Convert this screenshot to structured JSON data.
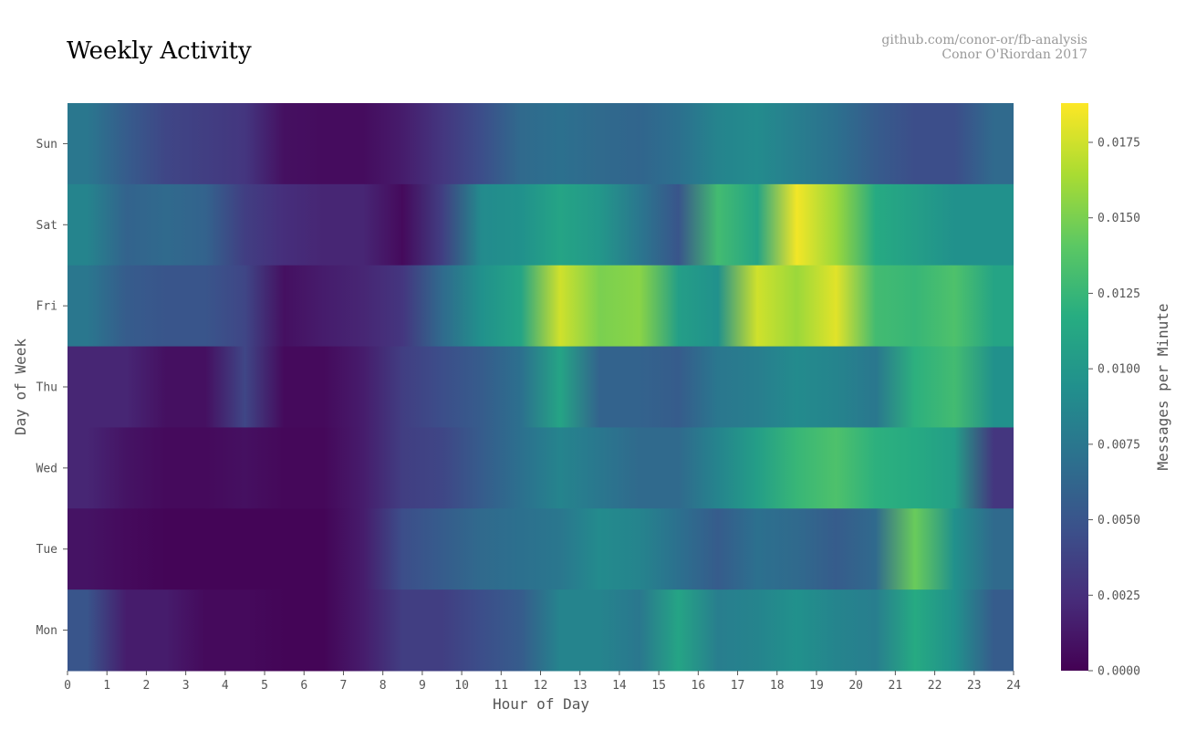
{
  "chart_data": {
    "type": "heatmap",
    "title": "Weekly Activity",
    "credit": {
      "line1": "github.com/conor-or/fb-analysis",
      "line2": "Conor O'Riordan 2017"
    },
    "xlabel": "Hour of Day",
    "ylabel": "Day of Week",
    "colorbar_label": "Messages per Minute",
    "colormap": "viridis",
    "x_ticks": [
      0,
      1,
      2,
      3,
      4,
      5,
      6,
      7,
      8,
      9,
      10,
      11,
      12,
      13,
      14,
      15,
      16,
      17,
      18,
      19,
      20,
      21,
      22,
      23,
      24
    ],
    "x_range": [
      0,
      24
    ],
    "colorbar_ticks": [
      "0.0000",
      "0.0025",
      "0.0050",
      "0.0075",
      "0.0100",
      "0.0125",
      "0.0150",
      "0.0175"
    ],
    "value_range": [
      0,
      0.0188
    ],
    "rows": [
      {
        "day": "Sun",
        "values": [
          0.0075,
          0.0055,
          0.004,
          0.0035,
          0.003,
          0.0008,
          0.0006,
          0.0006,
          0.0015,
          0.003,
          0.0045,
          0.0065,
          0.007,
          0.0065,
          0.0062,
          0.007,
          0.0085,
          0.009,
          0.008,
          0.007,
          0.0055,
          0.0045,
          0.0045,
          0.0065
        ]
      },
      {
        "day": "Sat",
        "values": [
          0.0085,
          0.006,
          0.0065,
          0.006,
          0.0035,
          0.0025,
          0.002,
          0.002,
          0.0005,
          0.0035,
          0.009,
          0.0095,
          0.011,
          0.01,
          0.0075,
          0.005,
          0.013,
          0.011,
          0.0185,
          0.016,
          0.0115,
          0.0105,
          0.0095,
          0.0095
        ]
      },
      {
        "day": "Fri",
        "values": [
          0.0075,
          0.0055,
          0.005,
          0.005,
          0.004,
          0.0008,
          0.0015,
          0.002,
          0.003,
          0.0065,
          0.0095,
          0.011,
          0.0175,
          0.015,
          0.0155,
          0.0105,
          0.0095,
          0.0175,
          0.016,
          0.018,
          0.013,
          0.0125,
          0.0135,
          0.011
        ]
      },
      {
        "day": "Thu",
        "values": [
          0.002,
          0.002,
          0.0008,
          0.0008,
          0.004,
          0.0005,
          0.0005,
          0.0015,
          0.0035,
          0.0045,
          0.0055,
          0.007,
          0.011,
          0.006,
          0.006,
          0.0055,
          0.0075,
          0.008,
          0.009,
          0.0085,
          0.0075,
          0.012,
          0.013,
          0.0095
        ]
      },
      {
        "day": "Wed",
        "values": [
          0.002,
          0.001,
          0.0005,
          0.0005,
          0.0008,
          0.0004,
          0.0004,
          0.0015,
          0.0035,
          0.004,
          0.0055,
          0.007,
          0.0085,
          0.0075,
          0.0065,
          0.0065,
          0.0085,
          0.0105,
          0.0125,
          0.0135,
          0.012,
          0.0115,
          0.0105,
          0.003
        ]
      },
      {
        "day": "Tue",
        "values": [
          0.001,
          0.0005,
          0.0002,
          0.0002,
          0.0002,
          0.0002,
          0.0002,
          0.0015,
          0.0045,
          0.0055,
          0.0065,
          0.007,
          0.0075,
          0.009,
          0.0085,
          0.007,
          0.0055,
          0.007,
          0.0065,
          0.0055,
          0.0065,
          0.0145,
          0.0095,
          0.0065
        ]
      },
      {
        "day": "Mon",
        "values": [
          0.005,
          0.0015,
          0.0015,
          0.0005,
          0.0005,
          0.0002,
          0.0002,
          0.0015,
          0.0035,
          0.0035,
          0.0045,
          0.0055,
          0.0085,
          0.0085,
          0.0075,
          0.011,
          0.008,
          0.0085,
          0.0095,
          0.0085,
          0.008,
          0.0115,
          0.0095,
          0.0055
        ]
      }
    ]
  }
}
